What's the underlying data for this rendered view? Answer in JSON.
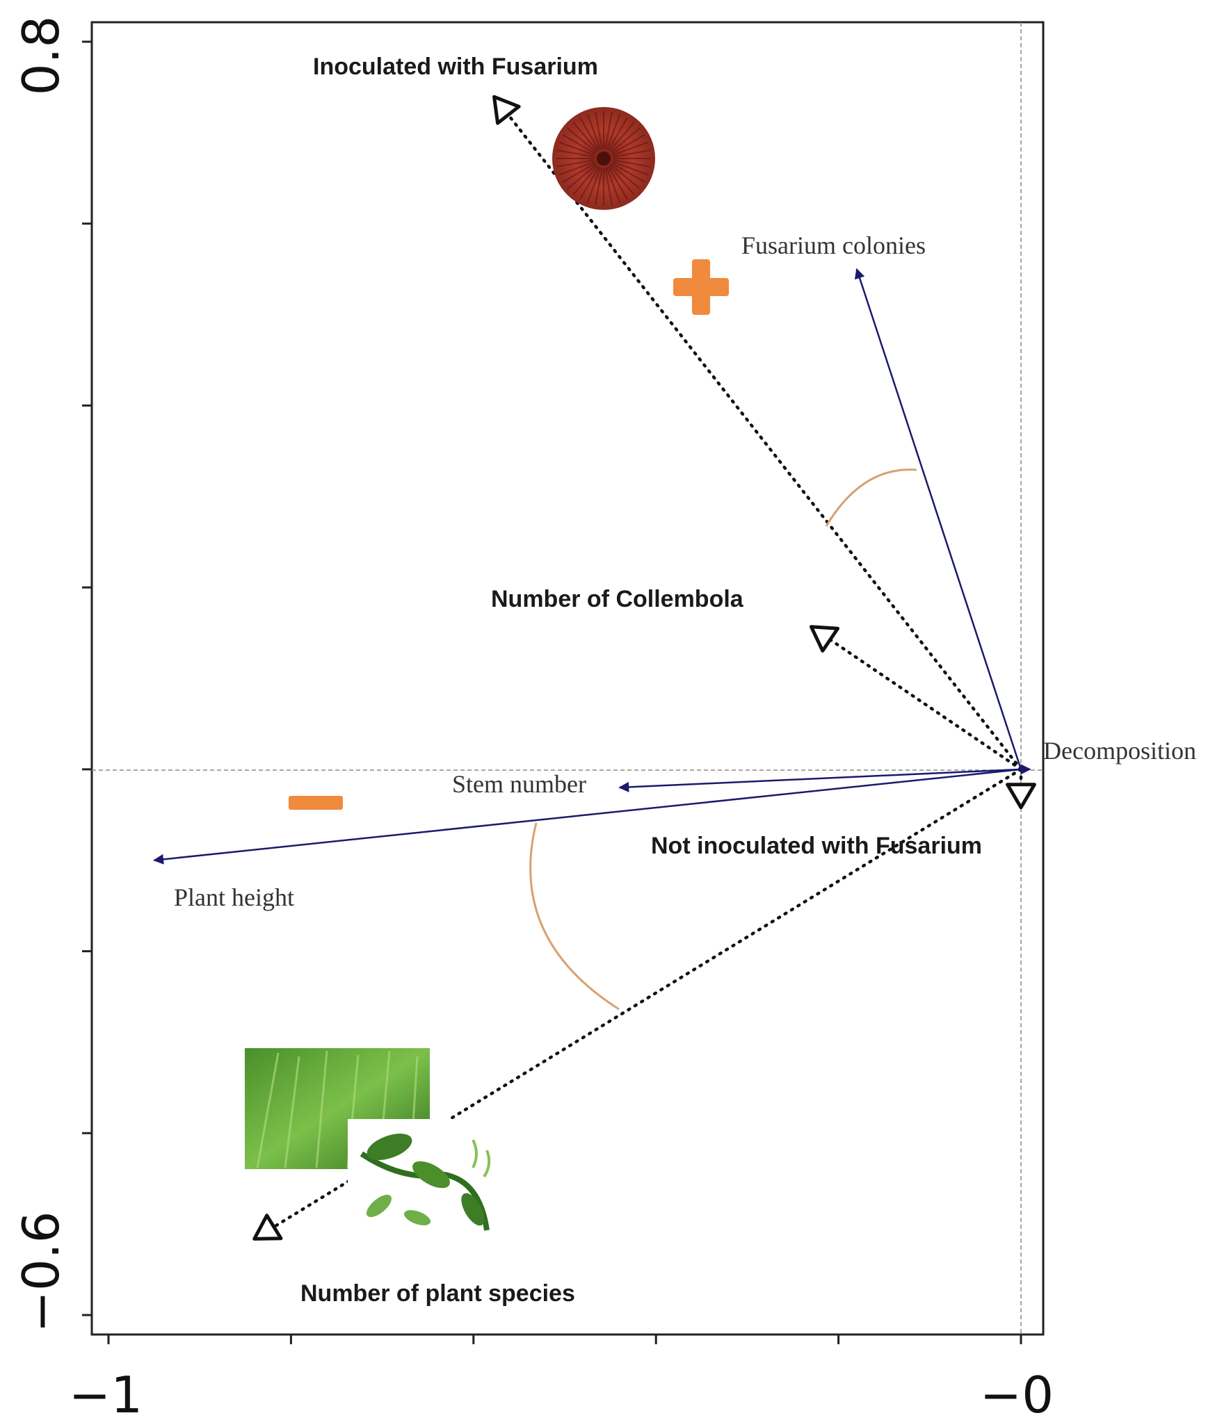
{
  "chart_data": {
    "type": "scatter",
    "subtype": "rda-biplot",
    "xlim": [
      -1.0,
      0.0
    ],
    "ylim": [
      -0.6,
      0.8
    ],
    "x_tick_labels": [
      "−1",
      "−0"
    ],
    "y_tick_labels": [
      "0.8",
      "−0.6"
    ],
    "origin_lines": true,
    "response_arrows": [
      {
        "label": "Fusarium colonies",
        "x": -0.18,
        "y": 0.55
      },
      {
        "label": "Decomposition",
        "x": 0.01,
        "y": 0.0
      },
      {
        "label": "Stem number",
        "x": -0.44,
        "y": -0.02
      },
      {
        "label": "Plant height",
        "x": -0.95,
        "y": -0.1
      }
    ],
    "explanatory_vectors": [
      {
        "label": "Inoculated with Fusarium",
        "x": -0.57,
        "y": 0.73
      },
      {
        "label": "Number of Collembola",
        "x": -0.22,
        "y": 0.15
      },
      {
        "label": "Not inoculated with Fusarium",
        "x": 0.0,
        "y": -0.03
      },
      {
        "label": "Number of plant species",
        "x": -0.83,
        "y": -0.51
      }
    ],
    "annotations": {
      "plus_symbol": "+",
      "minus_symbol": "−",
      "arrow_color": "#1a1a6e",
      "angle_arc_color": "#d9a070",
      "sign_color": "#f08a3c",
      "fungus_icon_color": "#a83226",
      "plant_images": [
        "wheat-field",
        "legume-plant"
      ]
    }
  }
}
